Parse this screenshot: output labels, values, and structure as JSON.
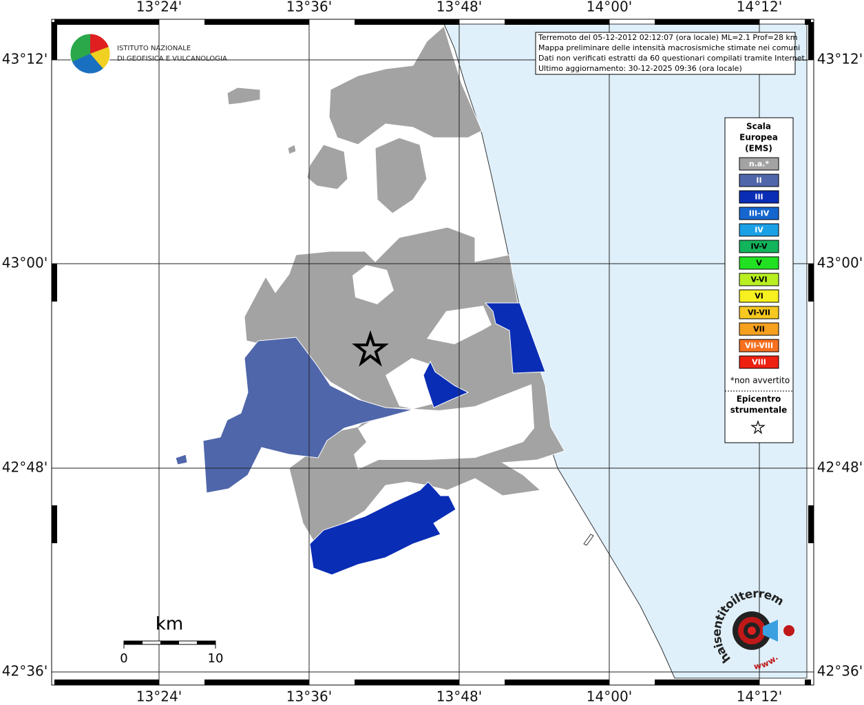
{
  "map": {
    "lon_labels": [
      "13°24'",
      "13°36'",
      "13°48'",
      "14°00'",
      "14°12'"
    ],
    "lat_labels": [
      "43°12'",
      "43°00'",
      "42°48'",
      "42°36'"
    ],
    "info_lines": [
      "Terremoto del 05-12-2012 02:12:07 (ora locale) ML=2.1 Prof=28 km",
      "Mappa preliminare delle intensità macrosismiche stimate nei comuni",
      "Dati non verificati estratti da 60 questionari compilati tramite Internet.",
      "Ultimo aggiornamento: 30-12-2025 09:36 (ora locale)"
    ],
    "logo_lines": [
      "ISTITUTO NAZIONALE",
      "DI GEOFISICA E VULCANOLOGIA"
    ],
    "legend": {
      "title": [
        "Scala",
        "Europea",
        "(EMS)"
      ],
      "items": [
        {
          "label": "n.a.*",
          "color": "#a3a3a3"
        },
        {
          "label": "II",
          "color": "#4f66aa"
        },
        {
          "label": "III",
          "color": "#0a2db5"
        },
        {
          "label": "III-IV",
          "color": "#1666cf"
        },
        {
          "label": "IV",
          "color": "#1ba0e6"
        },
        {
          "label": "IV-V",
          "color": "#12b45c"
        },
        {
          "label": "V",
          "color": "#22e022"
        },
        {
          "label": "V-VI",
          "color": "#b8ef22"
        },
        {
          "label": "VI",
          "color": "#f6f020"
        },
        {
          "label": "VI-VII",
          "color": "#f6c820"
        },
        {
          "label": "VII",
          "color": "#f6a020"
        },
        {
          "label": "VII-VIII",
          "color": "#f67020"
        },
        {
          "label": "VIII",
          "color": "#ee2010"
        }
      ],
      "note": "*non avvertito",
      "epicenter_title": [
        "Epicentro",
        "strumentale"
      ]
    },
    "scale": {
      "unit": "km",
      "labels": [
        "0",
        "10"
      ]
    },
    "badge": {
      "site": "haisentitoilterremoto.it",
      "prefix": "www."
    }
  }
}
